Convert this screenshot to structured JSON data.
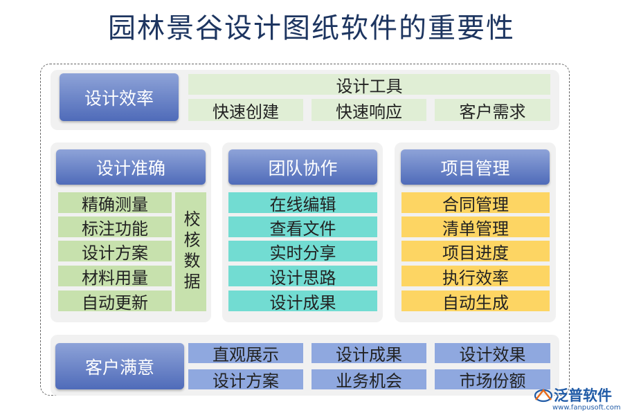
{
  "title": "园林景谷设计图纸软件的重要性",
  "efficiency": {
    "header": "设计效率",
    "tool": "设计工具",
    "items": [
      "快速创建",
      "快速响应",
      "客户需求"
    ]
  },
  "accuracy": {
    "header": "设计准确",
    "items": [
      "精确测量",
      "标注功能",
      "设计方案",
      "材料用量",
      "自动更新"
    ],
    "side": "校核数据"
  },
  "team": {
    "header": "团队协作",
    "items": [
      "在线编辑",
      "查看文件",
      "实时分享",
      "设计思路",
      "设计成果"
    ]
  },
  "project": {
    "header": "项目管理",
    "items": [
      "合同管理",
      "清单管理",
      "项目进度",
      "执行效率",
      "自动生成"
    ]
  },
  "satisfaction": {
    "header": "客户满意",
    "items": [
      "直观展示",
      "设计成果",
      "设计效果",
      "设计方案",
      "业务机会",
      "市场份额"
    ]
  },
  "logo": {
    "name": "泛普软件",
    "url": "www.fanpusoft.com"
  },
  "colors": {
    "header": "#5b78c4",
    "green": "#c7e1ad",
    "teal": "#72dcd2",
    "yellow": "#fdd563",
    "blue": "#8fa8df"
  }
}
